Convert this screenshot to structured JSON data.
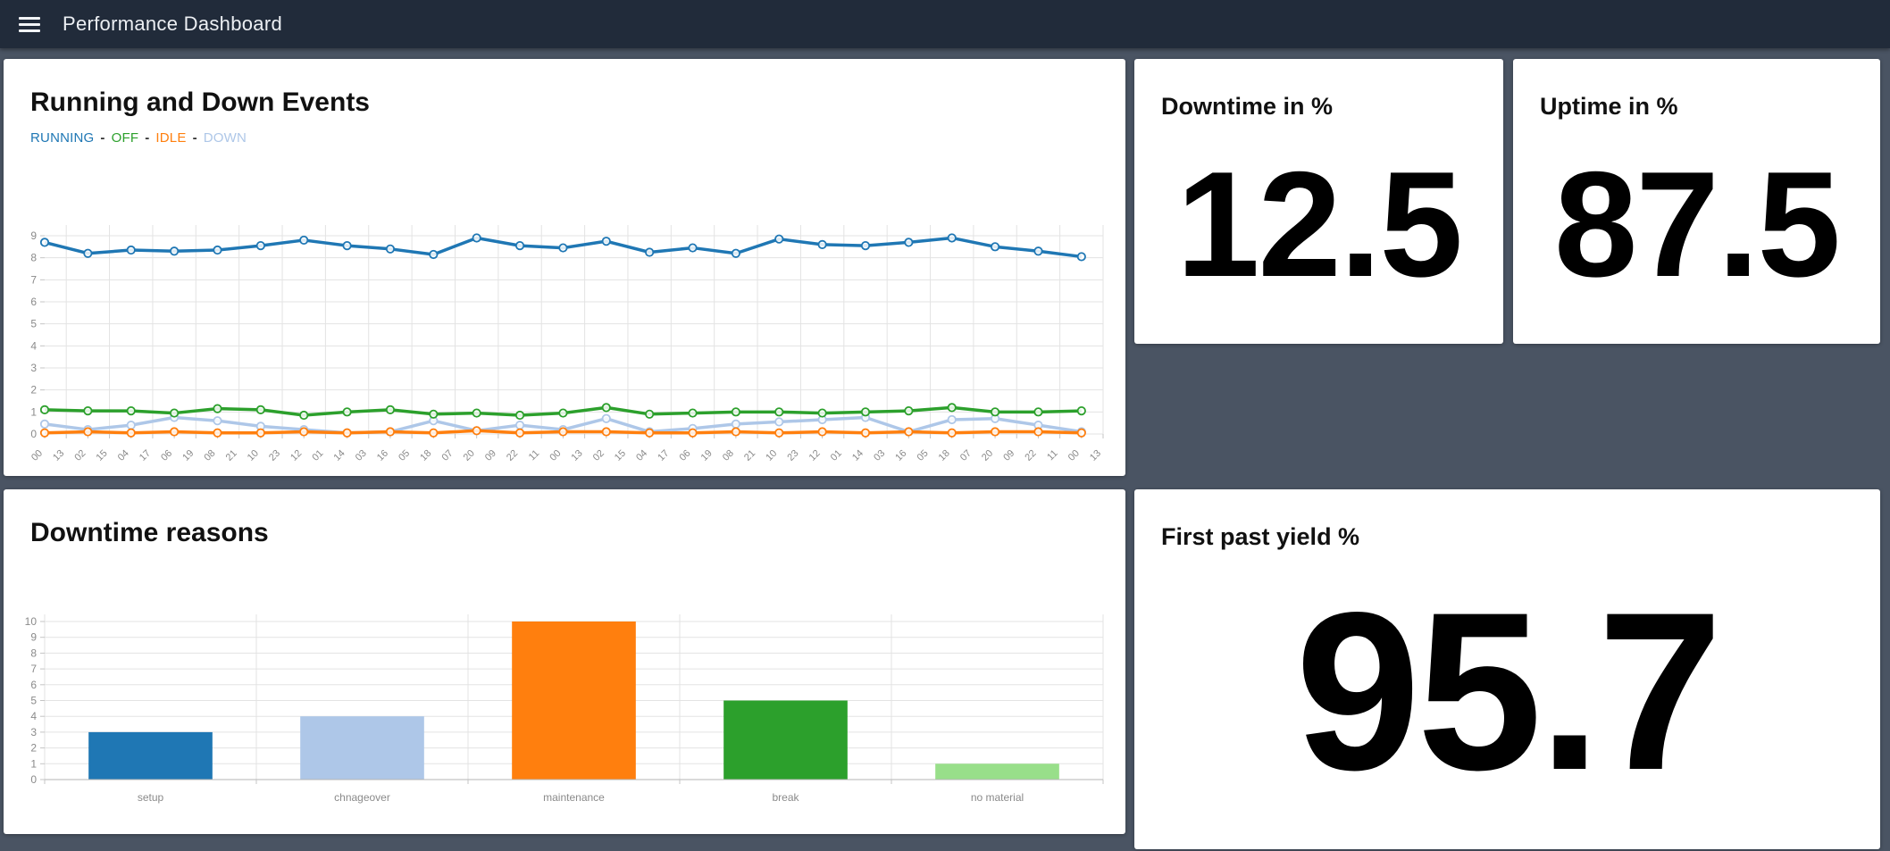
{
  "header": {
    "title": "Performance Dashboard",
    "menu_icon": "hamburger-icon"
  },
  "panels": {
    "running_events": {
      "title": "Running and Down Events"
    },
    "downtime": {
      "title": "Downtime in %",
      "value": "12.5"
    },
    "uptime": {
      "title": "Uptime in %",
      "value": "87.5"
    },
    "downtime_reasons": {
      "title": "Downtime reasons"
    },
    "first_past_yield": {
      "title": "First past yield %",
      "value": "95.7"
    }
  },
  "legend": {
    "separator": "-"
  },
  "colors": {
    "background": "#4a5463",
    "appbar": "#212b3a",
    "card": "#ffffff",
    "running": "#1f77b4",
    "off": "#2ca02c",
    "idle": "#ff7f0e",
    "down": "#aec7e8",
    "grid": "#e3e3e3",
    "axis_text": "#8a8a8a"
  },
  "chart_data": [
    {
      "type": "line",
      "title": "Running and Down Events",
      "xlabel": "",
      "ylabel": "",
      "ylim": [
        0,
        9
      ],
      "yticks": [
        0,
        1,
        2,
        3,
        4,
        5,
        6,
        7,
        8,
        9
      ],
      "grid": true,
      "legend_position": "top-left",
      "x_tick_labels": [
        "00",
        "13",
        "02",
        "15",
        "04",
        "17",
        "06",
        "19",
        "08",
        "21",
        "10",
        "23",
        "12",
        "01",
        "14",
        "03",
        "16",
        "05",
        "18",
        "07",
        "20",
        "09",
        "22",
        "11",
        "00",
        "13",
        "02",
        "15",
        "04",
        "17",
        "06",
        "19",
        "08",
        "21",
        "10",
        "23",
        "12",
        "01",
        "14",
        "03",
        "16",
        "05",
        "18",
        "07",
        "20",
        "09",
        "22",
        "11",
        "00",
        "13"
      ],
      "points_every_n_ticks": 2,
      "series": [
        {
          "name": "RUNNING",
          "color": "#1f77b4",
          "values": [
            8.7,
            8.2,
            8.35,
            8.3,
            8.35,
            8.55,
            8.8,
            8.55,
            8.4,
            8.15,
            8.9,
            8.55,
            8.45,
            8.75,
            8.25,
            8.45,
            8.2,
            8.85,
            8.6,
            8.55,
            8.7,
            8.9,
            8.5,
            8.3,
            8.05
          ]
        },
        {
          "name": "OFF",
          "color": "#2ca02c",
          "values": [
            1.1,
            1.05,
            1.05,
            0.95,
            1.15,
            1.1,
            0.85,
            1.0,
            1.1,
            0.9,
            0.95,
            0.85,
            0.95,
            1.2,
            0.9,
            0.95,
            1.0,
            1.0,
            0.95,
            1.0,
            1.05,
            1.2,
            1.0,
            1.0,
            1.05
          ]
        },
        {
          "name": "IDLE",
          "color": "#ff7f0e",
          "values": [
            0.05,
            0.1,
            0.05,
            0.1,
            0.05,
            0.05,
            0.1,
            0.05,
            0.1,
            0.05,
            0.15,
            0.05,
            0.1,
            0.1,
            0.05,
            0.05,
            0.1,
            0.05,
            0.1,
            0.05,
            0.1,
            0.05,
            0.1,
            0.1,
            0.05
          ]
        },
        {
          "name": "DOWN",
          "color": "#aec7e8",
          "values": [
            0.45,
            0.2,
            0.4,
            0.75,
            0.6,
            0.35,
            0.2,
            0.05,
            0.1,
            0.6,
            0.15,
            0.4,
            0.2,
            0.7,
            0.1,
            0.25,
            0.45,
            0.55,
            0.65,
            0.75,
            0.1,
            0.65,
            0.7,
            0.4,
            0.1
          ]
        }
      ]
    },
    {
      "type": "bar",
      "title": "Downtime reasons",
      "xlabel": "",
      "ylabel": "",
      "ylim": [
        0,
        10
      ],
      "yticks": [
        0,
        1,
        2,
        3,
        4,
        5,
        6,
        7,
        8,
        9,
        10
      ],
      "grid": true,
      "categories": [
        "setup",
        "chnageover",
        "maintenance",
        "break",
        "no material"
      ],
      "values": [
        3,
        4,
        10,
        5,
        1
      ],
      "bar_colors": [
        "#1f77b4",
        "#aec7e8",
        "#ff7f0e",
        "#2ca02c",
        "#98df8a"
      ]
    }
  ]
}
